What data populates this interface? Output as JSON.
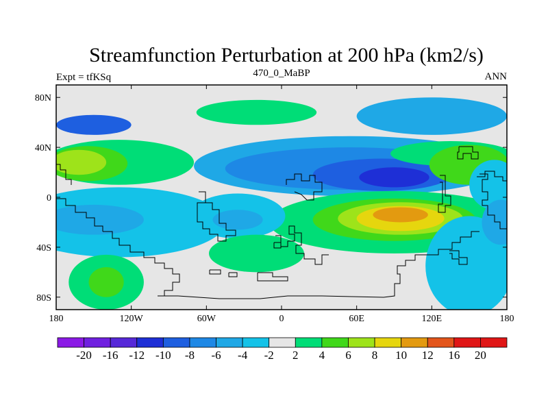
{
  "title": "Streamfunction Perturbation at 200 hPa (km2/s)",
  "left_string": "Expt = tfKSq",
  "center_string": "470_0_MaBP",
  "right_string": "ANN",
  "chart_data": {
    "type": "heatmap",
    "title": "Streamfunction Perturbation at 200 hPa (km2/s)",
    "units": "km2/s",
    "xlim": [
      -180,
      180
    ],
    "ylim": [
      -90,
      90
    ],
    "x_tick_values": [
      -180,
      -120,
      -60,
      0,
      60,
      120,
      180
    ],
    "x_tick_labels": [
      "180",
      "120W",
      "60W",
      "0",
      "60E",
      "120E",
      "180"
    ],
    "y_tick_values": [
      80,
      40,
      0,
      -40,
      -80
    ],
    "y_tick_labels": [
      "80N",
      "40N",
      "0",
      "40S",
      "80S"
    ],
    "colorbar": {
      "labels": [
        "-20",
        "-16",
        "-12",
        "-10",
        "-8",
        "-6",
        "-4",
        "-2",
        "2",
        "4",
        "6",
        "8",
        "10",
        "12",
        "16",
        "20"
      ],
      "colors": [
        "#8b1ae6",
        "#7020e0",
        "#5628d8",
        "#1e2fd6",
        "#1e5fe0",
        "#1e88e5",
        "#1fa8e6",
        "#14c2e8",
        "#e6e6e6",
        "#00dd77",
        "#40d81a",
        "#9ee31a",
        "#e6d60e",
        "#e39a10",
        "#e3551b",
        "#e01616"
      ]
    },
    "contour_regions": [
      {
        "lon": -150,
        "lat": 58,
        "hw": 30,
        "hh": 8,
        "level": 4
      },
      {
        "lon": -20,
        "lat": 68,
        "hw": 48,
        "hh": 10,
        "level": 9
      },
      {
        "lon": 120,
        "lat": 65,
        "hw": 60,
        "hh": 15,
        "level": 6
      },
      {
        "lon": -130,
        "lat": 28,
        "hw": 60,
        "hh": 18,
        "level": 9
      },
      {
        "lon": -155,
        "lat": 27,
        "hw": 32,
        "hh": 14,
        "level": 10
      },
      {
        "lon": -162,
        "lat": 28,
        "hw": 22,
        "hh": 10,
        "level": 11
      },
      {
        "lon": 55,
        "lat": 25,
        "hw": 125,
        "hh": 24,
        "level": 6
      },
      {
        "lon": 55,
        "lat": 23,
        "hw": 100,
        "hh": 17,
        "level": 5
      },
      {
        "lon": 80,
        "lat": 18,
        "hw": 55,
        "hh": 13,
        "level": 4
      },
      {
        "lon": 90,
        "lat": 16,
        "hw": 28,
        "hh": 8,
        "level": 3
      },
      {
        "lon": 135,
        "lat": 35,
        "hw": 48,
        "hh": 10,
        "level": 9
      },
      {
        "lon": 150,
        "lat": 26,
        "hw": 32,
        "hh": 16,
        "level": 10
      },
      {
        "lon": 90,
        "lat": -20,
        "hw": 100,
        "hh": 25,
        "level": 9
      },
      {
        "lon": 90,
        "lat": -18,
        "hw": 65,
        "hh": 17,
        "level": 10
      },
      {
        "lon": 95,
        "lat": -17,
        "hw": 50,
        "hh": 13,
        "level": 11
      },
      {
        "lon": 95,
        "lat": -17,
        "hw": 35,
        "hh": 10,
        "level": 12
      },
      {
        "lon": 95,
        "lat": -14,
        "hw": 22,
        "hh": 6,
        "level": 13
      },
      {
        "lon": -130,
        "lat": -20,
        "hw": 85,
        "hh": 28,
        "level": 7
      },
      {
        "lon": -150,
        "lat": -18,
        "hw": 40,
        "hh": 12,
        "level": 6
      },
      {
        "lon": -35,
        "lat": -15,
        "hw": 38,
        "hh": 18,
        "level": 7
      },
      {
        "lon": -35,
        "lat": -18,
        "hw": 20,
        "hh": 8,
        "level": 6
      },
      {
        "lon": -20,
        "lat": -45,
        "hw": 38,
        "hh": 15,
        "level": 9
      },
      {
        "lon": -140,
        "lat": -68,
        "hw": 30,
        "hh": 22,
        "level": 9
      },
      {
        "lon": -140,
        "lat": -68,
        "hw": 14,
        "hh": 12,
        "level": 10
      },
      {
        "lon": 150,
        "lat": -55,
        "hw": 35,
        "hh": 40,
        "level": 7
      },
      {
        "lon": 170,
        "lat": 10,
        "hw": 20,
        "hh": 20,
        "level": 7
      },
      {
        "lon": 175,
        "lat": -20,
        "hw": 15,
        "hh": 18,
        "level": 6
      }
    ]
  }
}
